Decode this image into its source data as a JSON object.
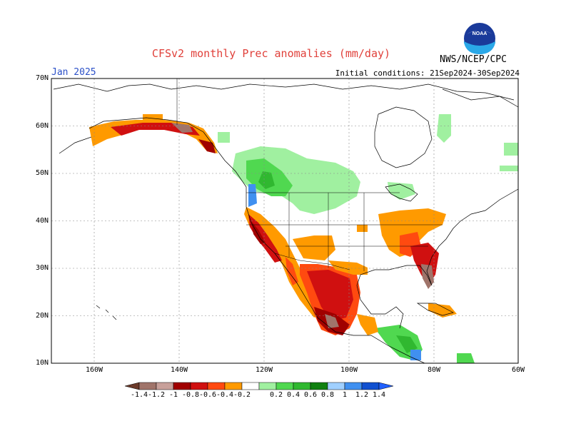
{
  "header": {
    "title": "CFSv2 monthly Prec anomalies (mm/day)",
    "month": "Jan 2025",
    "initial_conditions": "Initial conditions: 21Sep2024-30Sep2024",
    "agency": "NWS/NCEP/CPC",
    "logo_icon": "noaa-logo-icon"
  },
  "axes": {
    "lat_labels": [
      "70N",
      "60N",
      "50N",
      "40N",
      "30N",
      "20N",
      "10N"
    ],
    "lon_labels": [
      "160W",
      "140W",
      "120W",
      "100W",
      "80W",
      "60W"
    ]
  },
  "colorbar": {
    "labels": [
      "-1.4",
      "-1.2",
      "-1",
      "-0.8",
      "-0.6",
      "-0.4",
      "-0.2",
      "0.2",
      "0.4",
      "0.6",
      "0.8",
      "1",
      "1.2",
      "1.4"
    ],
    "colors": [
      "#6b3a2a",
      "#a0746a",
      "#c8a09a",
      "#a00000",
      "#d01010",
      "#ff4a10",
      "#ff9a00",
      "#ffffff",
      "#a0f0a0",
      "#50d850",
      "#30b830",
      "#108010",
      "#a0d0ff",
      "#4090f0",
      "#1050d0",
      "#2060ff"
    ]
  },
  "chart_data": {
    "type": "heatmap",
    "title": "CFSv2 monthly Prec anomalies (mm/day)",
    "lat_range": [
      10,
      70
    ],
    "lon_range": [
      -170,
      -60
    ],
    "units": "mm/day",
    "anomaly_regions": [
      {
        "region": "Southern Alaska coast",
        "value": -0.6
      },
      {
        "region": "Alaska panhandle",
        "value": -0.8
      },
      {
        "region": "Pacific Northwest / British Columbia",
        "value": 0.6
      },
      {
        "region": "Washington coast",
        "value": 1.2
      },
      {
        "region": "California coast",
        "value": -1.0
      },
      {
        "region": "Southwest US / Arizona",
        "value": -0.4
      },
      {
        "region": "Baja California",
        "value": -0.8
      },
      {
        "region": "Northern Mexico",
        "value": -0.6
      },
      {
        "region": "Southern Mexico Pacific coast",
        "value": -1.2
      },
      {
        "region": "Texas Gulf coast",
        "value": -0.4
      },
      {
        "region": "Ohio Valley",
        "value": -0.3
      },
      {
        "region": "Southeast US / Carolinas",
        "value": -0.6
      },
      {
        "region": "Florida",
        "value": -1.0
      },
      {
        "region": "Central America",
        "value": 0.5
      },
      {
        "region": "Cuba",
        "value": -0.4
      },
      {
        "region": "Great Lakes",
        "value": 0.3
      },
      {
        "region": "Hudson Bay east",
        "value": 0.4
      }
    ]
  }
}
